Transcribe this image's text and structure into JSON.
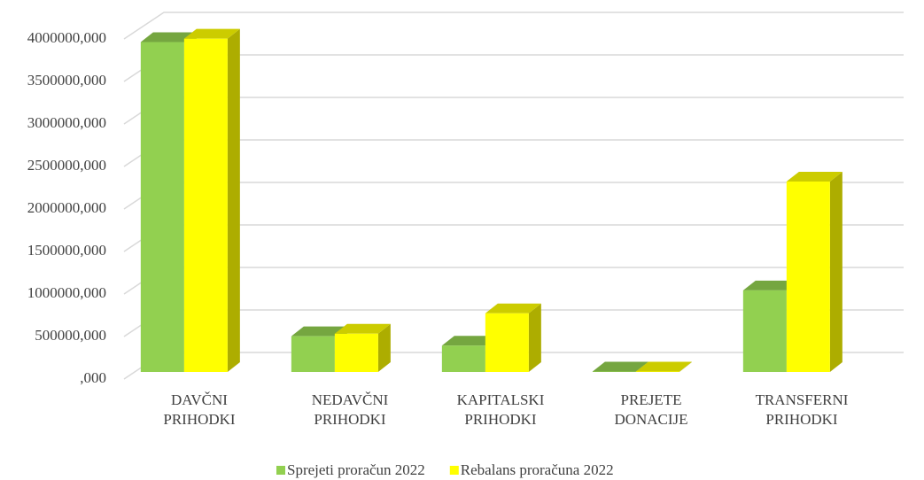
{
  "chart_data": {
    "type": "bar3d",
    "categories": [
      "DAVČNI\nPRIHODKI",
      "NEDAVČNI\nPRIHODKI",
      "KAPITALSKI\nPRIHODKI",
      "PREJETE\nDONACIJE",
      "TRANSFERNI\nPRIHODKI"
    ],
    "series": [
      {
        "name": "Sprejeti proračun 2022",
        "color": "#92d050",
        "values": [
          3880000,
          420000,
          310000,
          5000,
          960000
        ]
      },
      {
        "name": "Rebalans proračuna 2022",
        "color": "#ffff00",
        "values": [
          3920000,
          450000,
          690000,
          5000,
          2240000
        ]
      }
    ],
    "ylim": [
      0,
      4000000
    ],
    "yticks": [
      {
        "value": 0,
        "label": ",000"
      },
      {
        "value": 500000,
        "label": "500000,000"
      },
      {
        "value": 1000000,
        "label": "1000000,000"
      },
      {
        "value": 1500000,
        "label": "1500000,000"
      },
      {
        "value": 2000000,
        "label": "2000000,000"
      },
      {
        "value": 2500000,
        "label": "2500000,000"
      },
      {
        "value": 3000000,
        "label": "3000000,000"
      },
      {
        "value": 3500000,
        "label": "3500000,000"
      },
      {
        "value": 4000000,
        "label": "4000000,000"
      }
    ],
    "grid": true,
    "legend": "bottom"
  }
}
